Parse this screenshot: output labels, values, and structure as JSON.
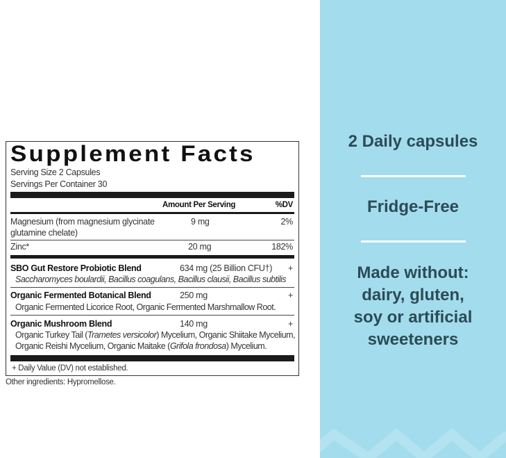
{
  "label": {
    "title": "Supplement Facts",
    "serving_size": "Serving Size 2 Capsules",
    "servings_per_container": "Servings Per Container 30",
    "header_amount": "Amount Per Serving",
    "header_dv": "%DV",
    "nutrients": [
      {
        "name_line1": "Magnesium (from magnesium glycinate",
        "name_line2": "glutamine chelate)",
        "amount": "9 mg",
        "dv": "2%"
      },
      {
        "name_line1": "Zinc*",
        "amount": "20 mg",
        "dv": "182%"
      }
    ],
    "blends": [
      {
        "name": "SBO Gut Restore Probiotic Blend",
        "amount": "634 mg (25 Billion CFU†)",
        "dv": "+",
        "ingredients": "Saccharomyces boulardii, Bacillus coagulans, Bacillus clausii, Bacillus subtilis"
      },
      {
        "name": "Organic Fermented Botanical Blend",
        "amount": "250 mg",
        "dv": "+",
        "ingredients": "Organic Fermented Licorice Root, Organic Fermented Marshmallow Root."
      },
      {
        "name": "Organic Mushroom Blend",
        "amount": "140 mg",
        "dv": "+",
        "ing_a": "Organic Turkey Tail (",
        "ing_b": "Trametes versicolor",
        "ing_c": ") Mycelium, Organic Shiitake Mycelium,",
        "ing_d": "Organic Reishi Mycelium, Organic Maitake (",
        "ing_e": "Grifola frondosa",
        "ing_f": ") Mycelium."
      }
    ],
    "footnote": "+ Daily Value (DV) not established."
  },
  "other_ingredients": "Other ingredients: Hypromellose.",
  "features": {
    "item1": "2 Daily capsules",
    "item2": "Fridge-Free",
    "item3_lines": [
      "Made without:",
      "dairy, gluten,",
      "soy or artificial",
      "sweeteners"
    ]
  },
  "colors": {
    "panel": "#a3dced",
    "panel_text": "#2b4b56"
  }
}
